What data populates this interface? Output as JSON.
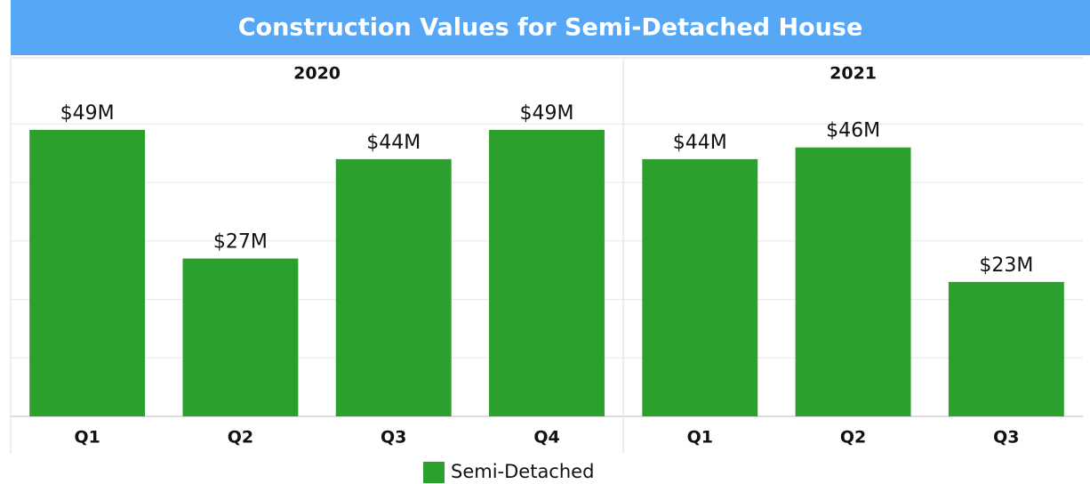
{
  "chart_data": {
    "type": "bar",
    "title": "Construction Values for Semi-Detached House",
    "panels": [
      {
        "label": "2020",
        "categories": [
          "Q1",
          "Q2",
          "Q3",
          "Q4"
        ],
        "values": [
          49,
          27,
          44,
          49
        ],
        "value_labels": [
          "$49M",
          "$27M",
          "$44M",
          "$49M"
        ]
      },
      {
        "label": "2021",
        "categories": [
          "Q1",
          "Q2",
          "Q3"
        ],
        "values": [
          44,
          46,
          23
        ],
        "value_labels": [
          "$44M",
          "$46M",
          "$23M"
        ]
      }
    ],
    "series_name": "Semi-Detached",
    "color": "#2ca02c",
    "ylim": [
      0,
      56
    ],
    "yticks": [
      0,
      10,
      20,
      30,
      40,
      50
    ],
    "grid": true
  }
}
